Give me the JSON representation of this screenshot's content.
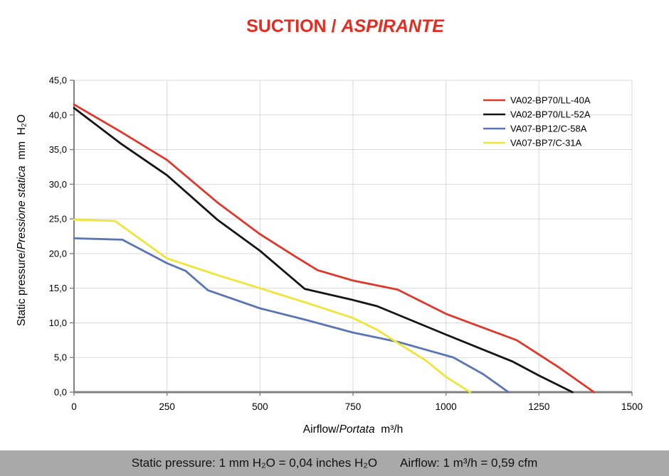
{
  "title": {
    "normal": "SUCTION / ",
    "italic": "ASPIRANTE",
    "color": "#e32d22"
  },
  "y_axis_title": {
    "normal": "Static pressure/",
    "italic": "Pressione statica",
    "unit": "  mm  H₂O"
  },
  "x_axis_title": {
    "normal": "Airflow/",
    "italic": "Portata",
    "unit": "  m³/h"
  },
  "footer": {
    "left": "Static pressure: 1 mm H₂O = 0,04 inches H₂O",
    "right": "Airflow: 1 m³/h = 0,59 cfm",
    "background": "#a9a9a9"
  },
  "chart_data": {
    "type": "line",
    "title": "SUCTION / ASPIRANTE",
    "xlabel": "Airflow/Portata m³/h",
    "ylabel": "Static pressure/Pressione statica mm H₂O",
    "xlim": [
      0,
      1500
    ],
    "ylim": [
      0,
      45
    ],
    "grid": true,
    "legend_position": "top-right",
    "colors": {
      "grid": "#d9d9d9",
      "axis": "#808080",
      "text": "#000000"
    },
    "x_ticks": [
      {
        "v": 0,
        "label": "0"
      },
      {
        "v": 250,
        "label": "250"
      },
      {
        "v": 500,
        "label": "500"
      },
      {
        "v": 750,
        "label": "750"
      },
      {
        "v": 1000,
        "label": "1000"
      },
      {
        "v": 1250,
        "label": "1250"
      },
      {
        "v": 1500,
        "label": "1500"
      }
    ],
    "y_ticks": [
      {
        "v": 0,
        "label": "0,0"
      },
      {
        "v": 5,
        "label": "5,0"
      },
      {
        "v": 10,
        "label": "10,0"
      },
      {
        "v": 15,
        "label": "15,0"
      },
      {
        "v": 20,
        "label": "20,0"
      },
      {
        "v": 25,
        "label": "25,0"
      },
      {
        "v": 30,
        "label": "30,0"
      },
      {
        "v": 35,
        "label": "35,0"
      },
      {
        "v": 40,
        "label": "40,0"
      },
      {
        "v": 45,
        "label": "45,0"
      }
    ],
    "series": [
      {
        "name": "VA02-BP70/LL-40A",
        "color": "#e0372b",
        "points": [
          [
            0,
            41.5
          ],
          [
            125,
            37.6
          ],
          [
            250,
            33.5
          ],
          [
            385,
            27.4
          ],
          [
            500,
            22.8
          ],
          [
            600,
            19.4
          ],
          [
            655,
            17.6
          ],
          [
            750,
            16.1
          ],
          [
            870,
            14.8
          ],
          [
            1000,
            11.3
          ],
          [
            1100,
            9.3
          ],
          [
            1190,
            7.5
          ],
          [
            1300,
            3.7
          ],
          [
            1398,
            0
          ]
        ]
      },
      {
        "name": "VA02-BP70/LL-52A",
        "color": "#151515",
        "points": [
          [
            0,
            41.0
          ],
          [
            125,
            35.9
          ],
          [
            250,
            31.3
          ],
          [
            385,
            24.9
          ],
          [
            500,
            20.4
          ],
          [
            620,
            14.9
          ],
          [
            750,
            13.3
          ],
          [
            815,
            12.4
          ],
          [
            1000,
            8.3
          ],
          [
            1180,
            4.4
          ],
          [
            1250,
            2.4
          ],
          [
            1340,
            0
          ]
        ]
      },
      {
        "name": "VA07-BP12/C-58A",
        "color": "#5a75b5",
        "points": [
          [
            0,
            22.2
          ],
          [
            130,
            22.0
          ],
          [
            250,
            18.6
          ],
          [
            300,
            17.5
          ],
          [
            360,
            14.7
          ],
          [
            500,
            12.1
          ],
          [
            625,
            10.4
          ],
          [
            750,
            8.6
          ],
          [
            875,
            7.2
          ],
          [
            1020,
            5.0
          ],
          [
            1100,
            2.6
          ],
          [
            1168,
            0
          ]
        ]
      },
      {
        "name": "VA07-BP7/C-31A",
        "color": "#efe438",
        "points": [
          [
            0,
            24.9
          ],
          [
            110,
            24.7
          ],
          [
            250,
            19.3
          ],
          [
            385,
            16.9
          ],
          [
            500,
            15.0
          ],
          [
            625,
            12.9
          ],
          [
            750,
            10.7
          ],
          [
            815,
            9.0
          ],
          [
            870,
            7.1
          ],
          [
            945,
            4.6
          ],
          [
            1000,
            2.2
          ],
          [
            1065,
            0
          ]
        ]
      }
    ]
  }
}
